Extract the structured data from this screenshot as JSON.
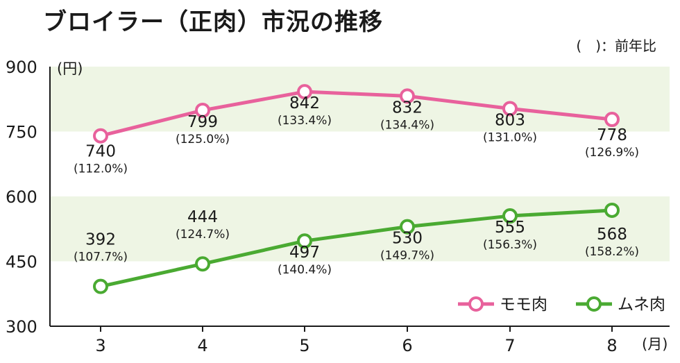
{
  "title": "ブロイラー（正肉）市況の推移",
  "note": "(　)：前年比",
  "chart_data": {
    "type": "line",
    "title": "ブロイラー（正肉）市況の推移",
    "xlabel": "(月)",
    "ylabel": "(円)",
    "x": [
      "3",
      "4",
      "5",
      "6",
      "7",
      "8"
    ],
    "ylim": [
      300,
      900
    ],
    "yticks": [
      "300",
      "450",
      "600",
      "750",
      "900"
    ],
    "grid": "horizontal bands",
    "legend_position": "bottom-right",
    "series": [
      {
        "name": "モモ肉",
        "color": "#e8619c",
        "values": [
          740,
          799,
          842,
          832,
          803,
          778
        ],
        "labels": [
          "740",
          "799",
          "842",
          "832",
          "803",
          "778"
        ],
        "yoy": [
          "(112.0%)",
          "(125.0%)",
          "(133.4%)",
          "(134.4%)",
          "(131.0%)",
          "(126.9%)"
        ]
      },
      {
        "name": "ムネ肉",
        "color": "#4aaa32",
        "values": [
          392,
          444,
          497,
          530,
          555,
          568
        ],
        "labels": [
          "392",
          "444",
          "497",
          "530",
          "555",
          "568"
        ],
        "yoy": [
          "(107.7%)",
          "(124.7%)",
          "(140.4%)",
          "(149.7%)",
          "(156.3%)",
          "(158.2%)"
        ]
      }
    ],
    "band_color": "#eef5e4"
  }
}
